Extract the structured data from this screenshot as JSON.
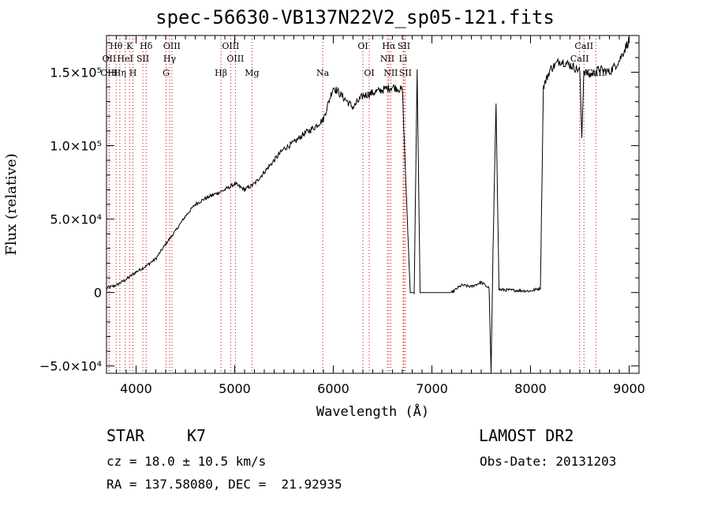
{
  "title": "spec-56630-VB137N22V2_sp05-121.fits",
  "info": {
    "class": "STAR",
    "subclass": "K7",
    "survey": "LAMOST DR2",
    "cz": "cz = 18.0 ± 10.5 km/s",
    "obs_date": "Obs-Date: 20131203",
    "coords": "RA = 137.58080, DEC =  21.92935"
  },
  "chart_data": {
    "type": "line",
    "xlabel": "Wavelength (Å)",
    "ylabel": "Flux (relative)",
    "xlim": [
      3700,
      9100
    ],
    "ylim": [
      -55000,
      175000
    ],
    "x_ticks": [
      4000,
      5000,
      6000,
      7000,
      8000,
      9000
    ],
    "y_ticks": [
      {
        "value": -50000,
        "label": "−5.0×10⁴"
      },
      {
        "value": 0,
        "label": "0"
      },
      {
        "value": 50000,
        "label": "5.0×10⁴"
      },
      {
        "value": 100000,
        "label": "1.0×10⁵"
      },
      {
        "value": 150000,
        "label": "1.5×10⁵"
      }
    ],
    "grid": false,
    "line_color": "#000000",
    "marker_color": "#cc0000",
    "series_anchor_points": [
      [
        3700,
        3000
      ],
      [
        3800,
        5000
      ],
      [
        3900,
        9000
      ],
      [
        4000,
        14000
      ],
      [
        4100,
        18000
      ],
      [
        4200,
        23000
      ],
      [
        4300,
        33000
      ],
      [
        4400,
        42000
      ],
      [
        4500,
        52000
      ],
      [
        4600,
        60000
      ],
      [
        4700,
        64000
      ],
      [
        4800,
        67000
      ],
      [
        4900,
        70000
      ],
      [
        5000,
        74000
      ],
      [
        5100,
        70000
      ],
      [
        5200,
        74000
      ],
      [
        5300,
        82000
      ],
      [
        5400,
        90000
      ],
      [
        5500,
        98000
      ],
      [
        5600,
        102000
      ],
      [
        5700,
        108000
      ],
      [
        5800,
        112000
      ],
      [
        5900,
        118000
      ],
      [
        6000,
        140000
      ],
      [
        6100,
        133000
      ],
      [
        6200,
        126000
      ],
      [
        6300,
        134000
      ],
      [
        6400,
        136000
      ],
      [
        6500,
        138000
      ],
      [
        6600,
        140000
      ],
      [
        6700,
        138000
      ],
      [
        6750,
        50000
      ],
      [
        6780,
        0
      ],
      [
        6820,
        0
      ],
      [
        6850,
        150000
      ],
      [
        6880,
        0
      ],
      [
        7200,
        0
      ],
      [
        7300,
        5000
      ],
      [
        7400,
        4000
      ],
      [
        7500,
        7000
      ],
      [
        7580,
        3000
      ],
      [
        7600,
        -55000
      ],
      [
        7620,
        30000
      ],
      [
        7650,
        130000
      ],
      [
        7680,
        2000
      ],
      [
        8000,
        1000
      ],
      [
        8100,
        3000
      ],
      [
        8130,
        140000
      ],
      [
        8200,
        152000
      ],
      [
        8300,
        158000
      ],
      [
        8400,
        155000
      ],
      [
        8500,
        151000
      ],
      [
        8520,
        105000
      ],
      [
        8540,
        151000
      ],
      [
        8600,
        148000
      ],
      [
        8700,
        152000
      ],
      [
        8800,
        150000
      ],
      [
        8900,
        158000
      ],
      [
        9000,
        172000
      ]
    ],
    "absorption_lines": [
      {
        "name": "Hθ",
        "wavelength": 3798,
        "row": 0
      },
      {
        "name": "K",
        "wavelength": 3934,
        "row": 0
      },
      {
        "name": "Hδ",
        "wavelength": 4102,
        "row": 0
      },
      {
        "name": "OIII",
        "wavelength": 4363,
        "row": 0
      },
      {
        "name": "OIII",
        "wavelength": 4959,
        "row": 0
      },
      {
        "name": "OI",
        "wavelength": 6300,
        "row": 0
      },
      {
        "name": "Hα",
        "wavelength": 6563,
        "row": 0
      },
      {
        "name": "SII",
        "wavelength": 6716,
        "row": 0
      },
      {
        "name": "CaII",
        "wavelength": 8542,
        "row": 0
      },
      {
        "name": "OII",
        "wavelength": 3727,
        "row": 1
      },
      {
        "name": "HeI",
        "wavelength": 3889,
        "row": 1
      },
      {
        "name": "SII",
        "wavelength": 4069,
        "row": 1
      },
      {
        "name": "Hγ",
        "wavelength": 4340,
        "row": 1
      },
      {
        "name": "OIII",
        "wavelength": 5007,
        "row": 1
      },
      {
        "name": "NII",
        "wavelength": 6548,
        "row": 1
      },
      {
        "name": "Li",
        "wavelength": 6708,
        "row": 1
      },
      {
        "name": "CaII",
        "wavelength": 8498,
        "row": 1
      },
      {
        "name": "OIII",
        "wavelength": 3727,
        "row": 2
      },
      {
        "name": "Hη",
        "wavelength": 3835,
        "row": 2
      },
      {
        "name": "H",
        "wavelength": 3968,
        "row": 2
      },
      {
        "name": "G",
        "wavelength": 4304,
        "row": 2
      },
      {
        "name": "Hβ",
        "wavelength": 4861,
        "row": 2
      },
      {
        "name": "Mg",
        "wavelength": 5175,
        "row": 2
      },
      {
        "name": "Na",
        "wavelength": 5893,
        "row": 2
      },
      {
        "name": "OI",
        "wavelength": 6364,
        "row": 2
      },
      {
        "name": "NII",
        "wavelength": 6583,
        "row": 2
      },
      {
        "name": "SII",
        "wavelength": 6731,
        "row": 2
      },
      {
        "name": "CaII",
        "wavelength": 8662,
        "row": 2
      }
    ]
  }
}
